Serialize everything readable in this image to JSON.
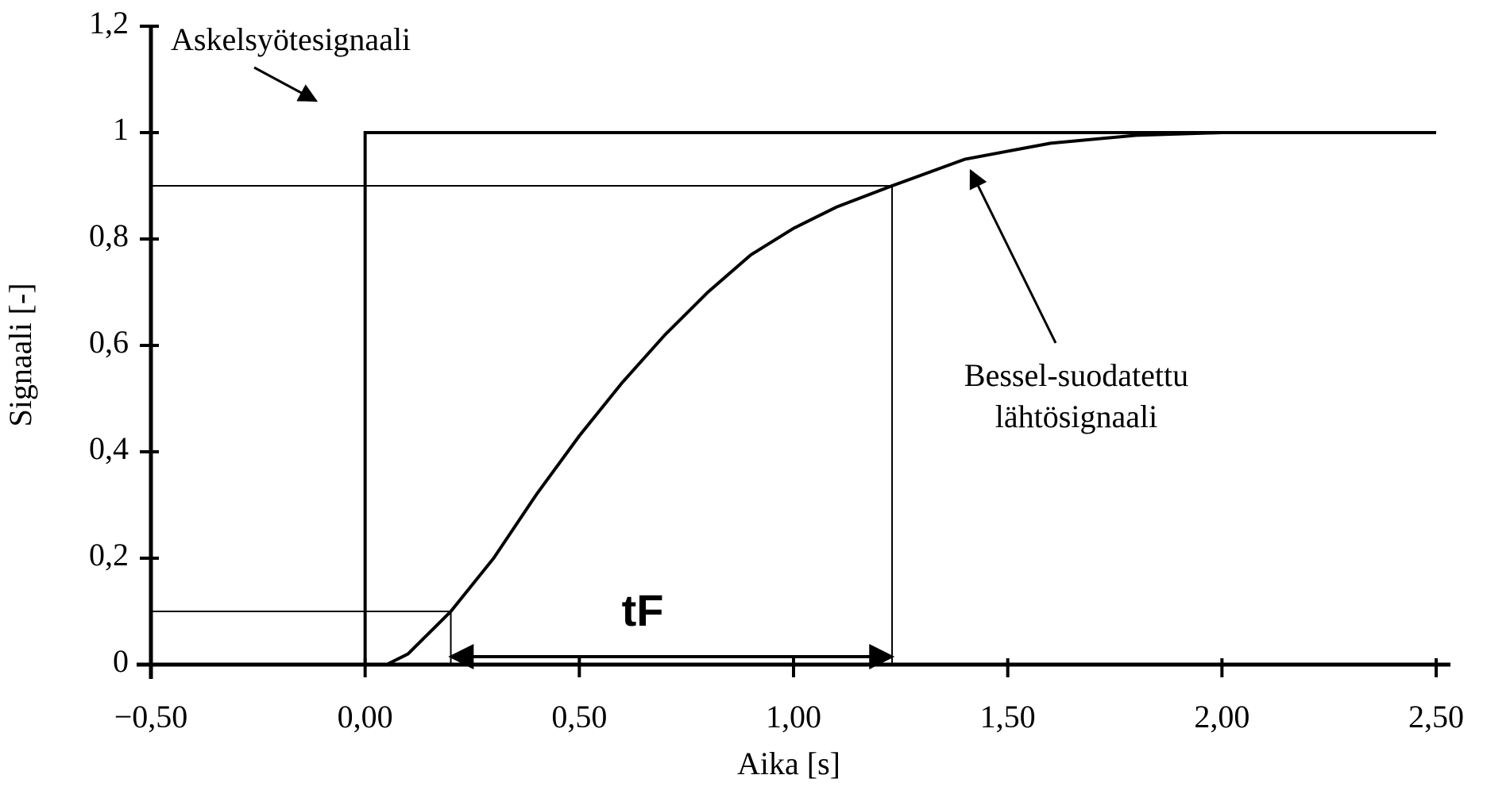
{
  "chart_data": {
    "type": "line",
    "xlabel": "Aika [s]",
    "ylabel": "Signaali [-]",
    "xlim": [
      -0.5,
      2.5
    ],
    "ylim": [
      0,
      1.2
    ],
    "xticks": [
      {
        "value": -0.5,
        "label": "−0,50"
      },
      {
        "value": 0,
        "label": "0,00"
      },
      {
        "value": 0.5,
        "label": "0,50"
      },
      {
        "value": 1,
        "label": "1,00"
      },
      {
        "value": 1.5,
        "label": "1,50"
      },
      {
        "value": 2,
        "label": "2,00"
      },
      {
        "value": 2.5,
        "label": "2,50"
      }
    ],
    "yticks": [
      0,
      {
        "value": 0.2,
        "label": "0,2"
      },
      {
        "value": 0.4,
        "label": "0,4"
      },
      {
        "value": 0.6,
        "label": "0,6"
      },
      {
        "value": 0.8,
        "label": "0,8"
      },
      1,
      {
        "value": 1.2,
        "label": "1,2"
      }
    ],
    "series": [
      {
        "name": "Askelsyötesignaali",
        "color": "#000000",
        "x": [
          0,
          0,
          2.5
        ],
        "values": [
          0,
          1,
          1
        ]
      },
      {
        "name": "Bessel-suodatettu lähtösignaali",
        "color": "#000000",
        "x": [
          0.05,
          0.1,
          0.2,
          0.3,
          0.4,
          0.5,
          0.6,
          0.7,
          0.8,
          0.9,
          1.0,
          1.1,
          1.23,
          1.4,
          1.6,
          1.8,
          2.0,
          2.5
        ],
        "values": [
          0,
          0.02,
          0.1,
          0.2,
          0.32,
          0.43,
          0.53,
          0.62,
          0.7,
          0.77,
          0.82,
          0.86,
          0.9,
          0.95,
          0.98,
          0.995,
          1.0,
          1.0
        ]
      }
    ],
    "hlines": [
      0.1,
      0.9
    ],
    "vlines": [
      0.2,
      1.23
    ],
    "annotations": {
      "step": "Askelsyötesignaali",
      "bessel_line1": "Bessel-suodatettu",
      "bessel_line2": "lähtösignaali",
      "span": "tF"
    }
  }
}
